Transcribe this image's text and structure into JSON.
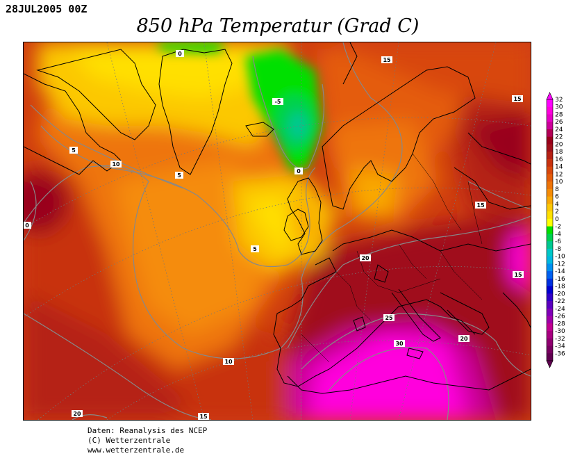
{
  "header": {
    "date": "28JUL2005 00Z",
    "title": "850 hPa Temperatur (Grad C)"
  },
  "map": {
    "contour_labels": [
      "0",
      "-5",
      "0",
      "5",
      "10",
      "5",
      "5",
      "10",
      "15",
      "15",
      "15",
      "0",
      "20",
      "25",
      "30",
      "20",
      "15",
      "20",
      "15"
    ]
  },
  "colorbar": {
    "labels": [
      "32",
      "30",
      "28",
      "26",
      "24",
      "22",
      "20",
      "18",
      "16",
      "14",
      "12",
      "10",
      "8",
      "6",
      "4",
      "2",
      "0",
      "-2",
      "-4",
      "-6",
      "-8",
      "-10",
      "-12",
      "-14",
      "-16",
      "-18",
      "-20",
      "-22",
      "-24",
      "-26",
      "-28",
      "-30",
      "-32",
      "-34",
      "-36"
    ],
    "colors": [
      "#ff00ff",
      "#ff00dd",
      "#e600c4",
      "#cc0099",
      "#b30055",
      "#99001a",
      "#a0101a",
      "#b52014",
      "#c8320f",
      "#d8470c",
      "#e45c0a",
      "#ee7408",
      "#f58c07",
      "#f9a806",
      "#fcc806",
      "#ffe000",
      "#ffff00",
      "#00e000",
      "#00d050",
      "#00c890",
      "#00c8c8",
      "#00b8e0",
      "#0090f0",
      "#0060f0",
      "#0030e0",
      "#0000d0",
      "#3000c8",
      "#5a00c0",
      "#8000b8",
      "#a000a8",
      "#c00090",
      "#a80080",
      "#900070",
      "#780060",
      "#600050"
    ]
  },
  "credits": {
    "line1": "Daten: Reanalysis des NCEP",
    "line2": "(C) Wetterzentrale",
    "line3": "www.wetterzentrale.de"
  }
}
